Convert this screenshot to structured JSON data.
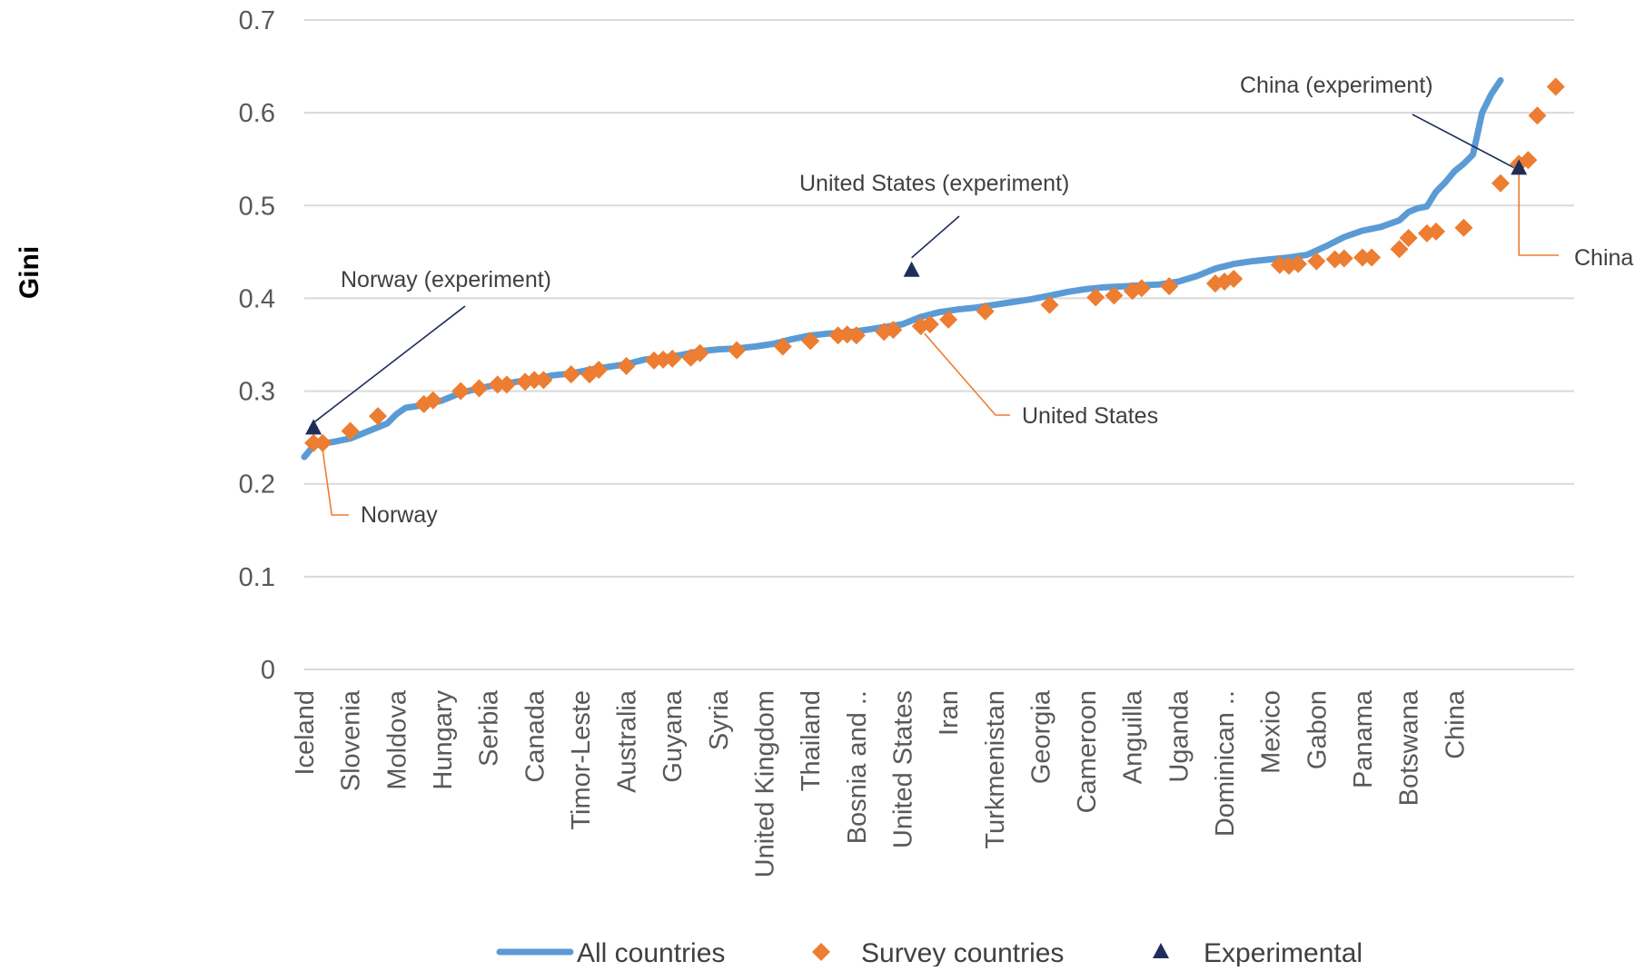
{
  "chart_data": {
    "type": "line",
    "ylabel": "Gini",
    "ylim": [
      0,
      0.7
    ],
    "yticks": [
      "0",
      "0.1",
      "0.2",
      "0.3",
      "0.4",
      "0.5",
      "0.6",
      "0.7"
    ],
    "grid": "horizontal",
    "legend_position": "bottom",
    "n_countries": 130,
    "xtick_labels": [
      {
        "label": "Iceland",
        "index": 0
      },
      {
        "label": "Slovenia",
        "index": 5
      },
      {
        "label": "Moldova",
        "index": 10
      },
      {
        "label": "Hungary",
        "index": 15
      },
      {
        "label": "Serbia",
        "index": 20
      },
      {
        "label": "Canada",
        "index": 25
      },
      {
        "label": "Timor-Leste",
        "index": 30
      },
      {
        "label": "Australia",
        "index": 35
      },
      {
        "label": "Guyana",
        "index": 40
      },
      {
        "label": "Syria",
        "index": 45
      },
      {
        "label": "United Kingdom",
        "index": 50
      },
      {
        "label": "Thailand",
        "index": 55
      },
      {
        "label": "Bosnia and ..",
        "index": 60
      },
      {
        "label": "United States",
        "index": 65
      },
      {
        "label": "Iran",
        "index": 70
      },
      {
        "label": "Turkmenistan",
        "index": 75
      },
      {
        "label": "Georgia",
        "index": 80
      },
      {
        "label": "Cameroon",
        "index": 85
      },
      {
        "label": "Anguilla",
        "index": 90
      },
      {
        "label": "Uganda",
        "index": 95
      },
      {
        "label": "Dominican ..",
        "index": 100
      },
      {
        "label": "Mexico",
        "index": 105
      },
      {
        "label": "Gabon",
        "index": 110
      },
      {
        "label": "Panama",
        "index": 115
      },
      {
        "label": "Botswana",
        "index": 120
      },
      {
        "label": "China",
        "index": 125
      }
    ],
    "series": [
      {
        "name": "All countries",
        "color": "#5B9BD5",
        "points": [
          [
            0,
            0.229
          ],
          [
            1,
            0.241
          ],
          [
            2,
            0.244
          ],
          [
            3,
            0.245
          ],
          [
            5,
            0.249
          ],
          [
            7,
            0.257
          ],
          [
            9,
            0.265
          ],
          [
            10,
            0.275
          ],
          [
            11,
            0.282
          ],
          [
            13,
            0.285
          ],
          [
            15,
            0.29
          ],
          [
            17,
            0.298
          ],
          [
            19,
            0.303
          ],
          [
            21,
            0.307
          ],
          [
            23,
            0.31
          ],
          [
            25,
            0.313
          ],
          [
            27,
            0.317
          ],
          [
            29,
            0.319
          ],
          [
            31,
            0.323
          ],
          [
            33,
            0.326
          ],
          [
            35,
            0.329
          ],
          [
            37,
            0.334
          ],
          [
            39,
            0.336
          ],
          [
            41,
            0.339
          ],
          [
            43,
            0.343
          ],
          [
            45,
            0.345
          ],
          [
            47,
            0.346
          ],
          [
            49,
            0.348
          ],
          [
            51,
            0.351
          ],
          [
            53,
            0.356
          ],
          [
            55,
            0.36
          ],
          [
            57,
            0.362
          ],
          [
            59,
            0.363
          ],
          [
            61,
            0.366
          ],
          [
            63,
            0.369
          ],
          [
            65,
            0.372
          ],
          [
            67,
            0.38
          ],
          [
            69,
            0.385
          ],
          [
            71,
            0.388
          ],
          [
            73,
            0.39
          ],
          [
            75,
            0.393
          ],
          [
            77,
            0.396
          ],
          [
            79,
            0.399
          ],
          [
            81,
            0.403
          ],
          [
            83,
            0.407
          ],
          [
            85,
            0.41
          ],
          [
            87,
            0.412
          ],
          [
            89,
            0.413
          ],
          [
            91,
            0.414
          ],
          [
            93,
            0.415
          ],
          [
            95,
            0.418
          ],
          [
            97,
            0.424
          ],
          [
            99,
            0.432
          ],
          [
            101,
            0.437
          ],
          [
            103,
            0.44
          ],
          [
            105,
            0.442
          ],
          [
            107,
            0.444
          ],
          [
            109,
            0.447
          ],
          [
            111,
            0.456
          ],
          [
            113,
            0.466
          ],
          [
            115,
            0.473
          ],
          [
            117,
            0.477
          ],
          [
            119,
            0.484
          ],
          [
            120,
            0.493
          ],
          [
            121,
            0.497
          ],
          [
            122,
            0.499
          ],
          [
            123,
            0.515
          ],
          [
            124,
            0.525
          ],
          [
            125,
            0.537
          ],
          [
            126,
            0.545
          ],
          [
            127,
            0.555
          ],
          [
            128,
            0.6
          ],
          [
            129,
            0.62
          ],
          [
            130,
            0.635
          ]
        ]
      },
      {
        "name": "Survey countries",
        "color": "#ED7D31",
        "points": [
          [
            1,
            0.244
          ],
          [
            2,
            0.244
          ],
          [
            5,
            0.257
          ],
          [
            8,
            0.273
          ],
          [
            13,
            0.286
          ],
          [
            14,
            0.29
          ],
          [
            17,
            0.3
          ],
          [
            19,
            0.303
          ],
          [
            21,
            0.307
          ],
          [
            22,
            0.307
          ],
          [
            24,
            0.31
          ],
          [
            25,
            0.312
          ],
          [
            26,
            0.312
          ],
          [
            29,
            0.318
          ],
          [
            31,
            0.318
          ],
          [
            32,
            0.323
          ],
          [
            35,
            0.327
          ],
          [
            38,
            0.333
          ],
          [
            39,
            0.334
          ],
          [
            40,
            0.335
          ],
          [
            42,
            0.336
          ],
          [
            43,
            0.341
          ],
          [
            47,
            0.344
          ],
          [
            52,
            0.348
          ],
          [
            55,
            0.354
          ],
          [
            58,
            0.36
          ],
          [
            59,
            0.361
          ],
          [
            60,
            0.36
          ],
          [
            63,
            0.364
          ],
          [
            64,
            0.366
          ],
          [
            67,
            0.37
          ],
          [
            68,
            0.372
          ],
          [
            70,
            0.377
          ],
          [
            74,
            0.386
          ],
          [
            81,
            0.393
          ],
          [
            86,
            0.401
          ],
          [
            88,
            0.403
          ],
          [
            90,
            0.408
          ],
          [
            91,
            0.411
          ],
          [
            94,
            0.413
          ],
          [
            99,
            0.416
          ],
          [
            100,
            0.418
          ],
          [
            101,
            0.421
          ],
          [
            106,
            0.436
          ],
          [
            107,
            0.435
          ],
          [
            108,
            0.437
          ],
          [
            110,
            0.44
          ],
          [
            112,
            0.442
          ],
          [
            113,
            0.443
          ],
          [
            115,
            0.444
          ],
          [
            116,
            0.444
          ],
          [
            119,
            0.453
          ],
          [
            120,
            0.465
          ],
          [
            122,
            0.47
          ],
          [
            123,
            0.472
          ],
          [
            126,
            0.476
          ],
          [
            130,
            0.524
          ],
          [
            132,
            0.545
          ],
          [
            133,
            0.549
          ],
          [
            134,
            0.597
          ],
          [
            136,
            0.628
          ]
        ]
      },
      {
        "name": "Experimental",
        "color": "#1F2D5A",
        "points": [
          [
            1,
            0.26
          ],
          [
            66,
            0.43
          ],
          [
            132,
            0.54
          ]
        ]
      }
    ],
    "annotations": [
      {
        "text": "Norway (experiment)",
        "x": 1,
        "y": 0.26,
        "kind": "experiment"
      },
      {
        "text": "United States (experiment)",
        "x": 66,
        "y": 0.43,
        "kind": "experiment"
      },
      {
        "text": "China (experiment)",
        "x": 132,
        "y": 0.54,
        "kind": "experiment"
      },
      {
        "text": "Norway",
        "x": 2,
        "y": 0.244,
        "kind": "actual"
      },
      {
        "text": "United States",
        "x": 67,
        "y": 0.37,
        "kind": "actual"
      },
      {
        "text": "China",
        "x": 132,
        "y": 0.545,
        "kind": "actual"
      }
    ]
  }
}
